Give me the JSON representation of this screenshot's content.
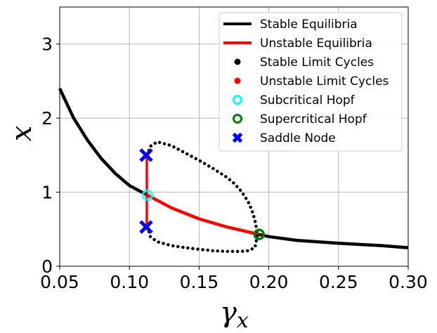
{
  "chart_data": {
    "type": "line",
    "xlabel_main": "γ",
    "xlabel_sub": "x",
    "ylabel": "x",
    "xlim": [
      0.05,
      0.3
    ],
    "ylim": [
      0,
      3.5
    ],
    "xticks": [
      0.05,
      0.1,
      0.15,
      0.2,
      0.25,
      0.3
    ],
    "xtick_labels": [
      "0.05",
      "0.10",
      "0.15",
      "0.20",
      "0.25",
      "0.30"
    ],
    "yticks": [
      0,
      1,
      2,
      3
    ],
    "ytick_labels": [
      "0",
      "1",
      "2",
      "3"
    ],
    "grid": true,
    "legend_position": "top-right",
    "colors": {
      "stable_eq": "#000000",
      "unstable_eq": "#ff0000",
      "stable_lc": "#000000",
      "unstable_lc": "#ff0000",
      "subcritical_hopf": "#00ffff",
      "supercritical_hopf": "#008000",
      "saddle_node": "#0000ff"
    },
    "legend": [
      {
        "label": "Stable Equilibria",
        "kind": "line",
        "color": "#000000"
      },
      {
        "label": "Unstable Equilibria",
        "kind": "line",
        "color": "#ff0000"
      },
      {
        "label": "Stable Limit Cycles",
        "kind": "dot",
        "color": "#000000"
      },
      {
        "label": "Unstable Limit Cycles",
        "kind": "dot",
        "color": "#ff0000"
      },
      {
        "label": "Subcritical Hopf",
        "kind": "ring",
        "color": "#00ffff"
      },
      {
        "label": "Supercritical Hopf",
        "kind": "ring",
        "color": "#008000"
      },
      {
        "label": "Saddle Node",
        "kind": "cross",
        "color": "#0000ff"
      }
    ],
    "series": [
      {
        "kind": "stable_eq_left",
        "x": [
          0.05,
          0.06,
          0.07,
          0.08,
          0.09,
          0.1,
          0.113
        ],
        "y": [
          2.4,
          2.0,
          1.7,
          1.45,
          1.25,
          1.09,
          0.96
        ]
      },
      {
        "kind": "unstable_eq",
        "x": [
          0.113,
          0.13,
          0.15,
          0.17,
          0.193
        ],
        "y": [
          0.96,
          0.79,
          0.64,
          0.53,
          0.43
        ]
      },
      {
        "kind": "stable_eq_right",
        "x": [
          0.193,
          0.2,
          0.22,
          0.25,
          0.28,
          0.3
        ],
        "y": [
          0.43,
          0.4,
          0.35,
          0.31,
          0.28,
          0.25
        ]
      },
      {
        "kind": "stable_lc_upper",
        "x": [
          0.113,
          0.115,
          0.12,
          0.13,
          0.14,
          0.15,
          0.16,
          0.17,
          0.175,
          0.18,
          0.185,
          0.188,
          0.19,
          0.192
        ],
        "y": [
          1.5,
          1.62,
          1.68,
          1.63,
          1.53,
          1.43,
          1.32,
          1.2,
          1.12,
          1.02,
          0.88,
          0.75,
          0.62,
          0.43
        ]
      },
      {
        "kind": "stable_lc_lower",
        "x": [
          0.113,
          0.115,
          0.12,
          0.13,
          0.14,
          0.15,
          0.16,
          0.17,
          0.18,
          0.185,
          0.19,
          0.192
        ],
        "y": [
          0.53,
          0.4,
          0.33,
          0.28,
          0.25,
          0.23,
          0.21,
          0.2,
          0.2,
          0.21,
          0.25,
          0.43
        ]
      },
      {
        "kind": "unstable_lc",
        "x": [
          0.1125,
          0.1125,
          0.1125,
          0.1125,
          0.1125,
          0.1125,
          0.1125,
          0.1125
        ],
        "y": [
          0.53,
          0.7,
          0.85,
          1.0,
          1.15,
          1.3,
          1.42,
          1.5
        ]
      }
    ],
    "points": [
      {
        "kind": "subcritical_hopf",
        "x": 0.113,
        "y": 0.96
      },
      {
        "kind": "supercritical_hopf",
        "x": 0.193,
        "y": 0.43
      },
      {
        "kind": "saddle_node",
        "x": 0.112,
        "y": 1.5
      },
      {
        "kind": "saddle_node",
        "x": 0.112,
        "y": 0.53
      }
    ]
  }
}
